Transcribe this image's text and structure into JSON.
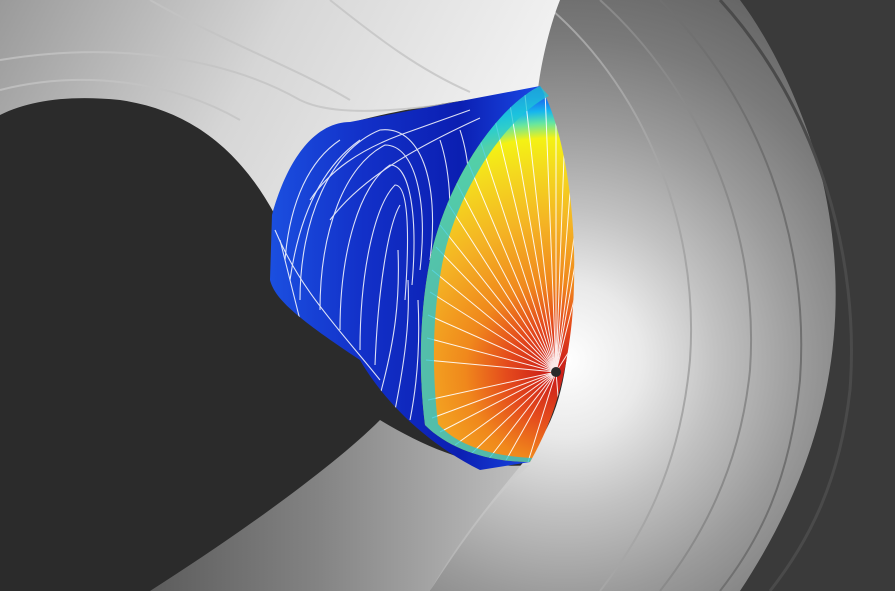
{
  "image": {
    "kind": "cfd-visualization",
    "subject": "reentry-capsule",
    "surface_colormap": [
      "#0a1fb0",
      "#1f5ff2",
      "#17b8f0",
      "#3ee6b0",
      "#f2f20f",
      "#f2b020",
      "#f07a14",
      "#d8281e"
    ],
    "field_colormap": [
      "#141414",
      "#343434",
      "#6a6a6a",
      "#a8a8a8",
      "#e4e4e4",
      "#ffffff"
    ],
    "streamline_color": "#ffffff",
    "background_color": "#2b2b2b"
  }
}
